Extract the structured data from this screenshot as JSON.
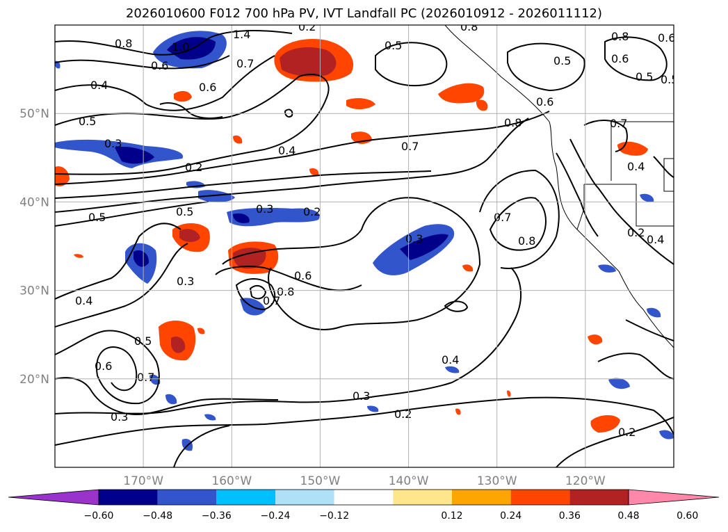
{
  "title": "2026010600 F012 700 hPa PV, IVT Landfall PC (2026010912 - 2026011112)",
  "map": {
    "lon_range": [
      -180,
      -110
    ],
    "lat_range": [
      10,
      60
    ],
    "lon_ticks": [
      {
        "value": -170,
        "label": "170°W"
      },
      {
        "value": -160,
        "label": "160°W"
      },
      {
        "value": -150,
        "label": "150°W"
      },
      {
        "value": -140,
        "label": "140°W"
      },
      {
        "value": -130,
        "label": "130°W"
      },
      {
        "value": -120,
        "label": "120°W"
      }
    ],
    "lat_ticks": [
      {
        "value": 20,
        "label": "20°N"
      },
      {
        "value": 30,
        "label": "30°N"
      },
      {
        "value": 40,
        "label": "40°N"
      },
      {
        "value": 50,
        "label": "50°N"
      }
    ],
    "gridlines": true
  },
  "colorbar": {
    "ticks": [
      "−0.60",
      "−0.48",
      "−0.36",
      "−0.24",
      "−0.12",
      "0.12",
      "0.24",
      "0.36",
      "0.48",
      "0.60"
    ],
    "colors": [
      "#9933cc",
      "#00008b",
      "#3355cc",
      "#00bfff",
      "#aee0f7",
      "#ffffff",
      "#ffe68a",
      "#ffa500",
      "#ff4500",
      "#b22222",
      "#ff88aa"
    ],
    "extend": "both"
  },
  "contour_labels": [
    "0.8",
    "1.0",
    "1.4",
    "0.6",
    "0.7",
    "0.4",
    "0.5",
    "0.3",
    "0.2",
    "0.6",
    "0.5",
    "0.2",
    "0.5",
    "0.5",
    "0.3",
    "0.2",
    "0.3",
    "0.4",
    "0.7",
    "0.8",
    "0.6",
    "0.8",
    "0.5",
    "0.5",
    "0.8",
    "0.6",
    "0.7",
    "0.4",
    "0.7",
    "0.8",
    "0.3",
    "0.6",
    "0.8",
    "0.7",
    "0.3",
    "0.4",
    "0.5",
    "0.6",
    "0.7",
    "0.4",
    "0.3",
    "0.2",
    "0.2",
    "0.2",
    "0.6",
    "0.5",
    "0.4"
  ]
}
